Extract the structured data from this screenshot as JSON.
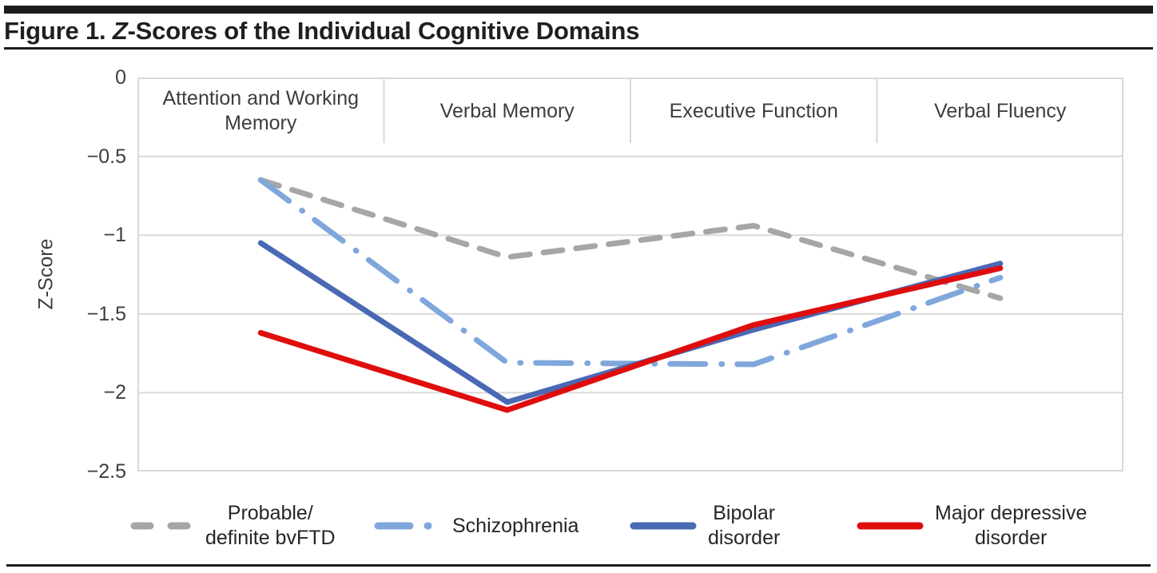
{
  "title": {
    "prefix": "Figure 1. ",
    "italic_part": "Z",
    "suffix": "-Scores of the Individual Cognitive Domains"
  },
  "chart_data": {
    "type": "line",
    "title": "Figure 1. Z-Scores of the Individual Cognitive Domains",
    "xlabel": "",
    "ylabel": "Z-Score",
    "ylim": [
      -2.5,
      0
    ],
    "y_ticks": [
      0,
      -0.5,
      -1,
      -1.5,
      -2,
      -2.5
    ],
    "y_tick_labels": [
      "0",
      "−0.5",
      "−1",
      "−1.5",
      "−2",
      "−2.5"
    ],
    "grid": true,
    "legend_position": "bottom",
    "grid_color": "#d9d9d9",
    "categories": [
      "Attention and Working Memory",
      "Verbal Memory",
      "Executive Function",
      "Verbal Fluency"
    ],
    "series": [
      {
        "name": "Probable/definite bvFTD",
        "legend_lines": [
          "Probable/",
          "definite bvFTD"
        ],
        "color": "#a6a6a6",
        "style": "dashed",
        "values": [
          -0.65,
          -1.14,
          -0.94,
          -1.4
        ]
      },
      {
        "name": "Schizophrenia",
        "legend_lines": [
          "Schizophrenia"
        ],
        "color": "#7fa7dc",
        "style": "long-dash-dot",
        "values": [
          -0.65,
          -1.81,
          -1.82,
          -1.27
        ]
      },
      {
        "name": "Bipolar disorder",
        "legend_lines": [
          "Bipolar",
          "disorder"
        ],
        "color": "#4a69b4",
        "style": "solid",
        "values": [
          -1.05,
          -2.06,
          -1.6,
          -1.18
        ]
      },
      {
        "name": "Major depressive disorder",
        "legend_lines": [
          "Major depressive",
          "disorder"
        ],
        "color": "#e00d0d",
        "style": "solid",
        "values": [
          -1.62,
          -2.11,
          -1.57,
          -1.21
        ]
      }
    ]
  }
}
